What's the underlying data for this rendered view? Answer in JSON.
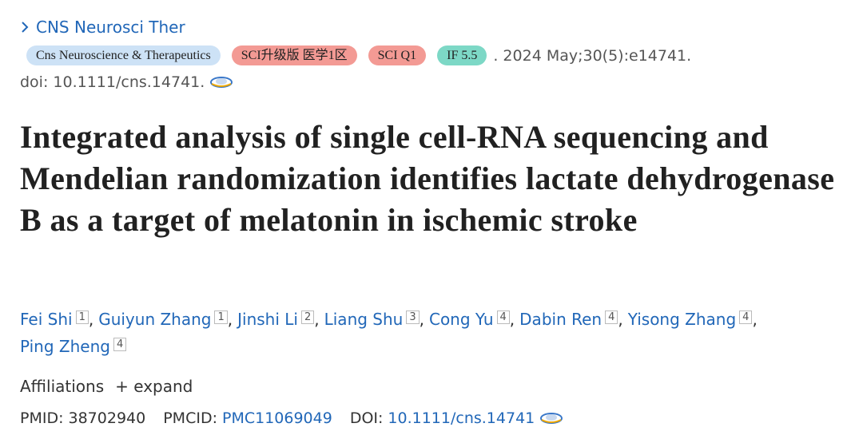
{
  "journal": "CNS Neurosci Ther",
  "badges": [
    "Cns Neuroscience & Therapeutics",
    "SCI升级版 医学1区",
    "SCI Q1",
    "IF 5.5"
  ],
  "citation": ". 2024 May;30(5):e14741.",
  "doi_line": "doi: 10.1111/cns.14741.",
  "title": "Integrated analysis of single cell-RNA sequencing and Mendelian randomization identifies lactate dehydrogenase B as a target of melatonin in ischemic stroke",
  "authors": [
    {
      "name": "Fei Shi",
      "aff": "1"
    },
    {
      "name": "Guiyun Zhang",
      "aff": "1"
    },
    {
      "name": "Jinshi Li",
      "aff": "2"
    },
    {
      "name": "Liang Shu",
      "aff": "3"
    },
    {
      "name": "Cong Yu",
      "aff": "4"
    },
    {
      "name": "Dabin Ren",
      "aff": "4"
    },
    {
      "name": "Yisong Zhang",
      "aff": "4"
    },
    {
      "name": "Ping Zheng",
      "aff": "4"
    }
  ],
  "author_separator": ",",
  "affiliations": "Affiliations",
  "expand": "+ expand",
  "ids": {
    "pmid_label": "PMID:",
    "pmid": "38702940",
    "pmcid_label": "PMCID:",
    "pmcid": "PMC11069049",
    "doi_label": "DOI:",
    "doi": "10.1111/cns.14741"
  }
}
